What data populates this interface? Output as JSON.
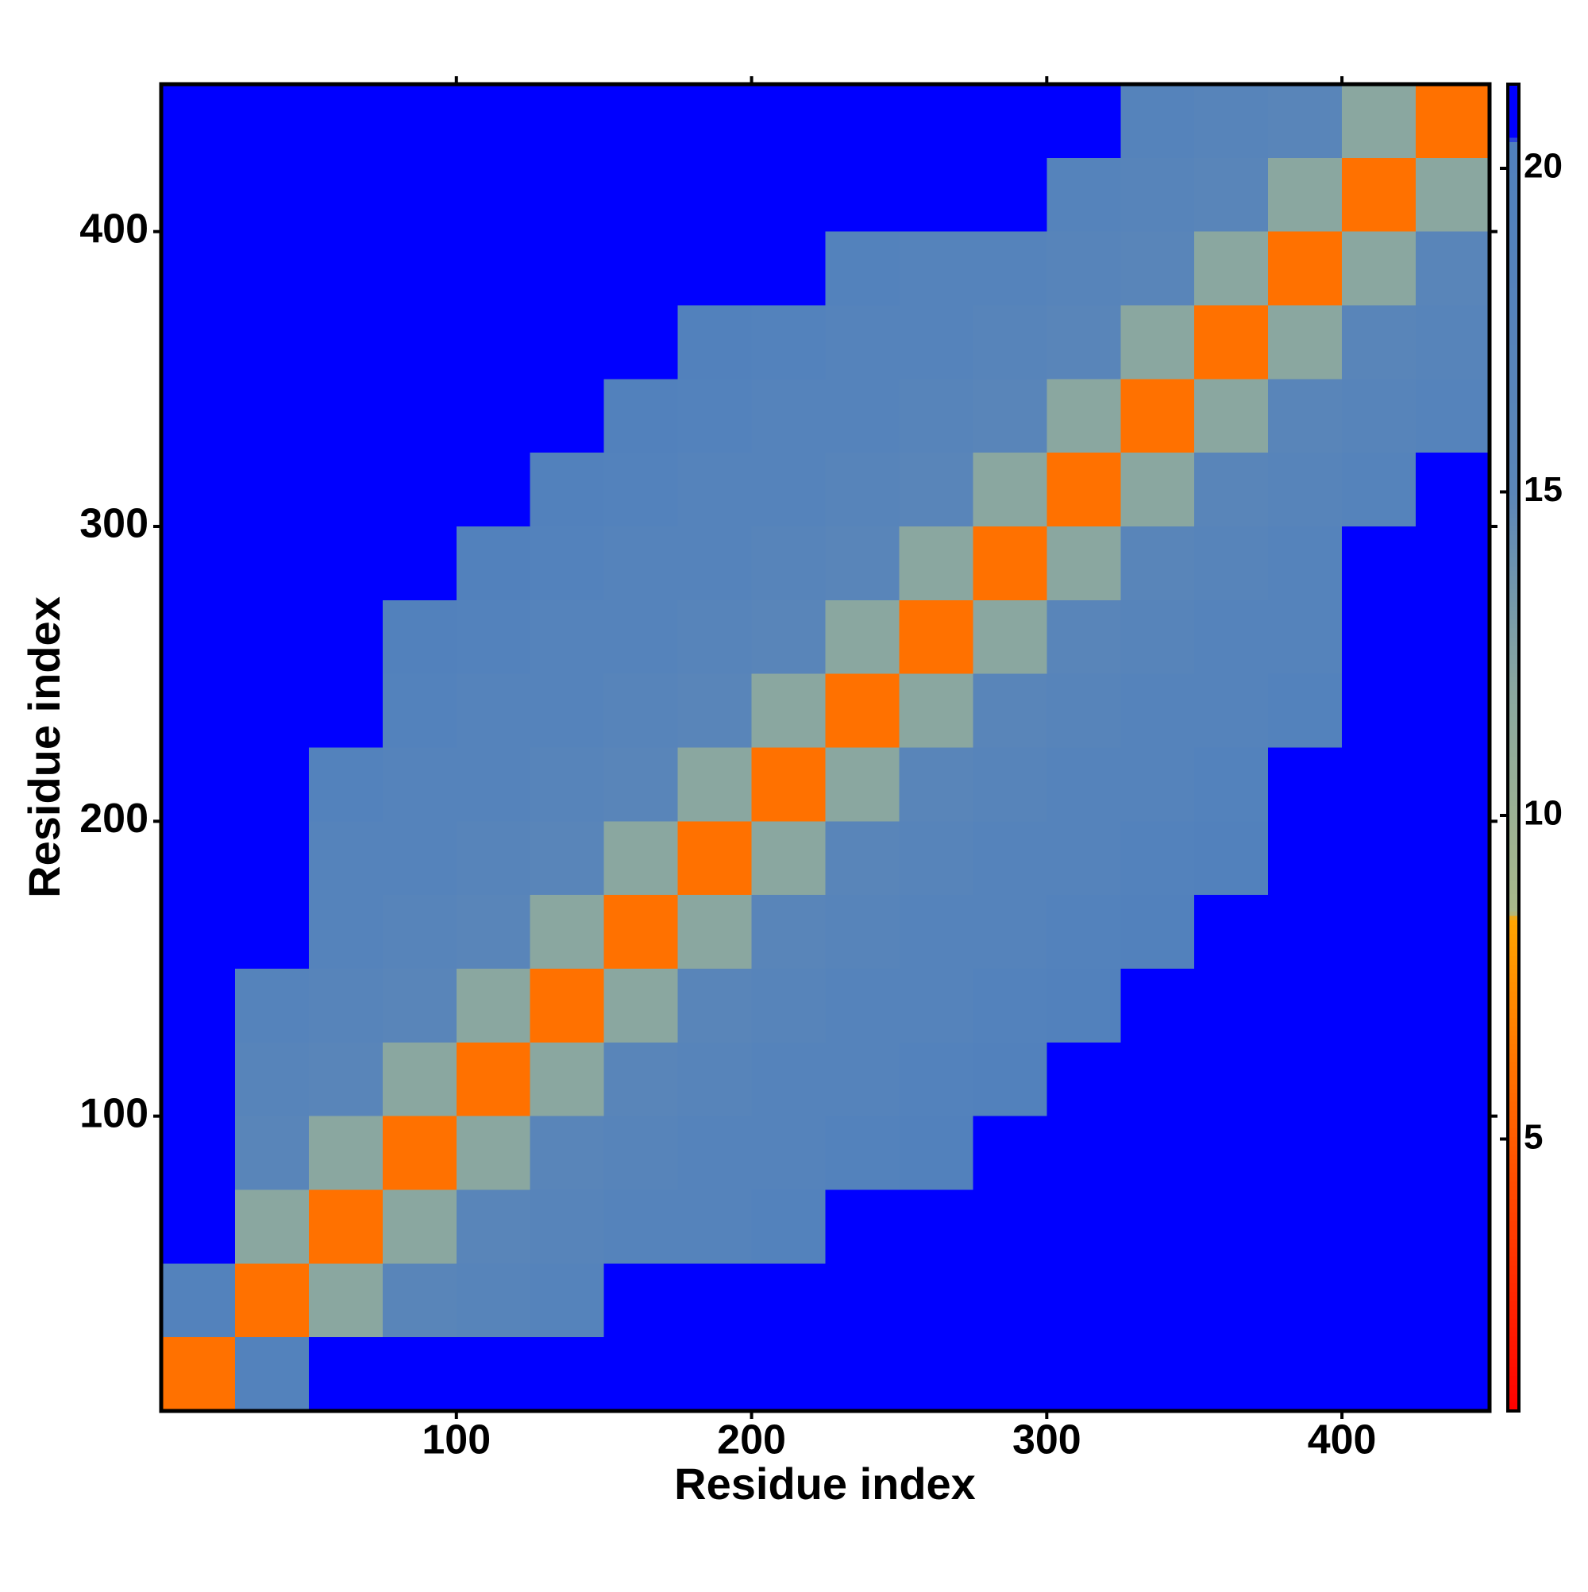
{
  "chart_data": {
    "type": "heatmap",
    "xlabel": "Residue index",
    "ylabel": "Residue index",
    "xlim": [
      0,
      450
    ],
    "ylim": [
      0,
      450
    ],
    "xticks": [
      100,
      200,
      300,
      400
    ],
    "yticks": [
      100,
      200,
      300,
      400
    ],
    "xbins": [
      0,
      25,
      50,
      75,
      100,
      125,
      150,
      175,
      200,
      225,
      250,
      275,
      300,
      325,
      350,
      375,
      400,
      425,
      450
    ],
    "ybins": [
      0,
      25,
      50,
      75,
      100,
      125,
      150,
      175,
      200,
      225,
      250,
      275,
      300,
      325,
      350,
      375,
      400,
      425,
      450
    ],
    "z": [
      [
        6,
        19,
        21,
        21,
        21,
        21,
        21,
        21,
        21,
        21,
        21,
        21,
        21,
        21,
        21,
        21,
        21,
        21
      ],
      [
        19,
        6,
        12,
        16,
        17,
        18,
        21,
        21,
        21,
        21,
        21,
        21,
        21,
        21,
        21,
        21,
        21,
        21
      ],
      [
        21,
        12,
        6,
        12,
        16,
        17,
        18,
        18,
        19,
        21,
        21,
        21,
        21,
        21,
        21,
        21,
        21,
        21
      ],
      [
        21,
        16,
        12,
        6,
        12,
        16,
        17,
        18,
        18,
        19,
        19.5,
        21,
        21,
        21,
        21,
        21,
        21,
        21
      ],
      [
        21,
        17,
        16,
        12,
        6,
        12,
        16,
        17,
        18,
        18,
        19,
        19.5,
        21,
        21,
        21,
        21,
        21,
        21
      ],
      [
        21,
        18,
        17,
        16,
        12,
        6,
        12,
        16,
        17,
        18,
        18,
        19,
        19.5,
        21,
        21,
        21,
        21,
        21
      ],
      [
        21,
        21,
        18,
        17,
        16,
        12,
        6,
        12,
        16,
        17,
        18,
        18,
        19,
        19.5,
        21,
        21,
        21,
        21
      ],
      [
        21,
        21,
        18,
        18,
        17,
        16,
        12,
        6,
        12,
        16,
        17,
        18,
        18,
        19,
        19.5,
        21,
        21,
        21
      ],
      [
        21,
        21,
        19,
        18,
        18,
        17,
        16,
        12,
        6,
        12,
        16,
        17,
        18,
        18,
        19,
        21,
        21,
        21
      ],
      [
        21,
        21,
        21,
        19,
        18,
        18,
        17,
        16,
        12,
        6,
        12,
        16,
        17,
        18,
        18,
        19,
        21,
        21
      ],
      [
        21,
        21,
        21,
        19.5,
        19,
        18,
        18,
        17,
        16,
        12,
        6,
        12,
        16,
        17,
        18,
        18,
        21,
        21
      ],
      [
        21,
        21,
        21,
        21,
        19.5,
        19,
        18,
        18,
        17,
        16,
        12,
        6,
        12,
        16,
        17,
        18,
        21,
        21
      ],
      [
        21,
        21,
        21,
        21,
        21,
        19.5,
        19,
        18,
        18,
        17,
        16,
        12,
        6,
        12,
        16,
        17,
        18,
        21
      ],
      [
        21,
        21,
        21,
        21,
        21,
        21,
        19.5,
        19,
        18,
        18,
        17,
        16,
        12,
        6,
        12,
        16,
        17,
        18
      ],
      [
        21,
        21,
        21,
        21,
        21,
        21,
        21,
        19.5,
        19,
        18,
        18,
        17,
        16,
        12,
        6,
        12,
        16,
        17
      ],
      [
        21,
        21,
        21,
        21,
        21,
        21,
        21,
        21,
        21,
        19,
        18,
        18,
        17,
        16,
        12,
        6,
        12,
        16
      ],
      [
        21,
        21,
        21,
        21,
        21,
        21,
        21,
        21,
        21,
        21,
        21,
        21,
        18,
        17,
        16,
        12,
        6,
        12
      ],
      [
        21,
        21,
        21,
        21,
        21,
        21,
        21,
        21,
        21,
        21,
        21,
        21,
        21,
        18,
        17,
        16,
        12,
        6
      ]
    ],
    "zlim": [
      0.8,
      21.3
    ],
    "zticks": [
      5,
      10,
      15,
      20
    ],
    "colorscale": [
      {
        "value": 0.8,
        "color": "#ff0000"
      },
      {
        "value": 8.4,
        "color": "#ffa500"
      },
      {
        "value": 8.5,
        "color": "#a9b98a"
      },
      {
        "value": 12,
        "color": "#8aa7a0"
      },
      {
        "value": 15,
        "color": "#5b86b8"
      },
      {
        "value": 20.4,
        "color": "#5080bd"
      },
      {
        "value": 20.5,
        "color": "#0000ff"
      },
      {
        "value": 21.3,
        "color": "#0000ff"
      }
    ]
  }
}
